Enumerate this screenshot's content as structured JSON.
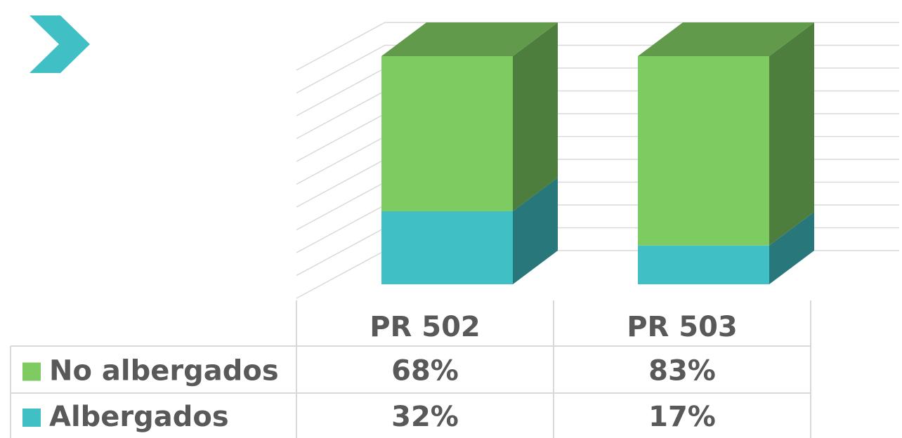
{
  "chart_data": {
    "type": "bar3d_stacked",
    "categories": [
      "PR 502",
      "PR 503"
    ],
    "series": [
      {
        "name": "No albergados",
        "color": "#7ecb62",
        "values": [
          68,
          83
        ],
        "value_labels": [
          "68%",
          "83%"
        ]
      },
      {
        "name": "Albergados",
        "color": "#40c0c4",
        "values": [
          32,
          17
        ],
        "value_labels": [
          "32%",
          "17%"
        ]
      }
    ],
    "ylim": [
      0,
      100
    ],
    "yticks": [
      0,
      10,
      20,
      30,
      40,
      50,
      60,
      70,
      80,
      90,
      100
    ],
    "grid": true
  }
}
